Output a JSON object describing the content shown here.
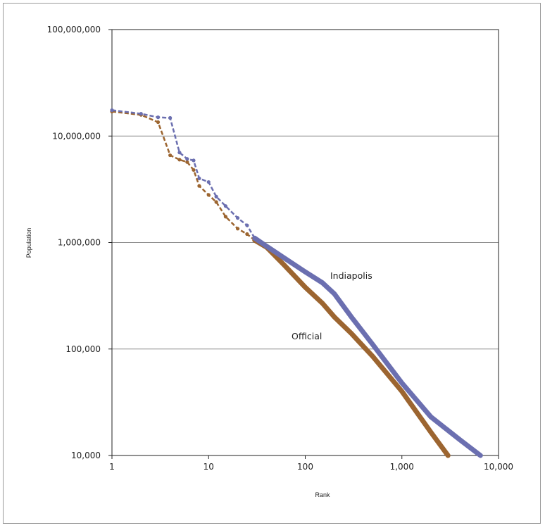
{
  "chart_data": {
    "type": "line",
    "title": "",
    "xlabel": "Rank",
    "ylabel": "Population",
    "x_scale": "log",
    "y_scale": "log",
    "xlim": [
      1,
      10000
    ],
    "ylim": [
      10000,
      100000000
    ],
    "x_ticks": [
      "1",
      "10",
      "100",
      "1,000",
      "10,000"
    ],
    "y_ticks": [
      "100,000,000",
      "10,000,000",
      "1,000,000",
      "100,000",
      "10,000"
    ],
    "grid": "horizontal",
    "legend": "none",
    "annotations": [
      "Indiapolis",
      "Official"
    ],
    "series": [
      {
        "name": "Indiapolis",
        "color": "#6b6fb0",
        "x": [
          1,
          2,
          3,
          4,
          5,
          6,
          7,
          8,
          10,
          12,
          15,
          20,
          25,
          30,
          40,
          60,
          100,
          150,
          200,
          300,
          500,
          1000,
          2000,
          4000,
          6500
        ],
        "y": [
          17500000,
          16200000,
          15000000,
          14800000,
          7000000,
          6100000,
          5900000,
          4000000,
          3700000,
          2700000,
          2200000,
          1700000,
          1450000,
          1100000,
          920000,
          720000,
          530000,
          420000,
          330000,
          200000,
          110000,
          48000,
          23000,
          14000,
          10000
        ]
      },
      {
        "name": "Official",
        "color": "#9c6530",
        "x": [
          1,
          2,
          3,
          4,
          5,
          6,
          7,
          8,
          10,
          12,
          15,
          20,
          25,
          30,
          40,
          60,
          100,
          150,
          200,
          300,
          500,
          1000,
          2000,
          3000
        ],
        "y": [
          17000000,
          15800000,
          13500000,
          6600000,
          6000000,
          5700000,
          4800000,
          3400000,
          2800000,
          2400000,
          1750000,
          1350000,
          1200000,
          1050000,
          900000,
          620000,
          380000,
          270000,
          200000,
          140000,
          85000,
          40000,
          16500,
          10000
        ]
      }
    ]
  }
}
